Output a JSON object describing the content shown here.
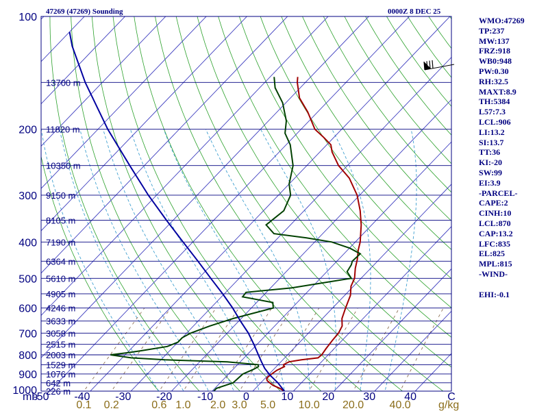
{
  "chart_data": {
    "type": "skew-t",
    "title": "47269 (47269) Sounding",
    "datetime": "0000Z  8 DEC 25",
    "pressure_axis": {
      "unit_label": "mb",
      "levels": [
        100,
        200,
        300,
        400,
        500,
        600,
        700,
        800,
        900,
        1000
      ],
      "ylim": [
        1000,
        100
      ]
    },
    "height_labels": [
      {
        "p": 150,
        "label": "13700 m"
      },
      {
        "p": 200,
        "label": "11820 m"
      },
      {
        "p": 250,
        "label": "10350 m"
      },
      {
        "p": 300,
        "label": "9150 m"
      },
      {
        "p": 350,
        "label": "8105 m"
      },
      {
        "p": 400,
        "label": "7190 m"
      },
      {
        "p": 450,
        "label": "6364 m"
      },
      {
        "p": 500,
        "label": "5610 m"
      },
      {
        "p": 550,
        "label": "4905 m"
      },
      {
        "p": 600,
        "label": "4246 m"
      },
      {
        "p": 650,
        "label": "3633 m"
      },
      {
        "p": 700,
        "label": "3058 m"
      },
      {
        "p": 750,
        "label": "2515 m"
      },
      {
        "p": 800,
        "label": "2003 m"
      },
      {
        "p": 850,
        "label": "1529 m"
      },
      {
        "p": 900,
        "label": "1076 m"
      },
      {
        "p": 950,
        "label": "642 m"
      },
      {
        "p": 1000,
        "label": "226 m"
      }
    ],
    "temperature_axis": {
      "ticks": [
        "-50",
        "-40",
        "-30",
        "-20",
        "-10",
        "0",
        "10",
        "20",
        "30",
        "40",
        "C"
      ],
      "xlim": [
        -50,
        50
      ]
    },
    "mixing_ratio_labels": {
      "unit_label": "g/kg",
      "values": [
        "0.1",
        "0.2",
        "0.6",
        "1.0",
        "2.0",
        "3.0",
        "5.0",
        "10.0",
        "20.0",
        "40.0"
      ]
    },
    "isobars": [
      100,
      150,
      200,
      250,
      300,
      350,
      400,
      450,
      500,
      550,
      600,
      650,
      700,
      750,
      800,
      850,
      900,
      950,
      1000
    ],
    "isotherms": [
      -150,
      -140,
      -130,
      -120,
      -110,
      -100,
      -90,
      -80,
      -70,
      -60,
      -50,
      -40,
      -30,
      -20,
      -10,
      0,
      10,
      20,
      30,
      40
    ],
    "dry_adiabats_theta": [
      250,
      260,
      270,
      280,
      290,
      300,
      310,
      320,
      330,
      340,
      350,
      360,
      370,
      380,
      390,
      400,
      410,
      420,
      430,
      440,
      450,
      460,
      470,
      480,
      490,
      500
    ],
    "moist_adiabats_c": [
      -20,
      -14,
      -8,
      -2,
      4,
      10,
      16,
      22,
      28,
      34
    ],
    "mixing_ratio_lines": [
      0.1,
      0.2,
      0.6,
      1,
      2,
      3,
      5,
      10,
      20,
      40
    ],
    "series": [
      {
        "name": "Temperature",
        "color": "#a00000",
        "points": [
          [
            1003,
            8
          ],
          [
            983,
            6
          ],
          [
            965,
            3.6
          ],
          [
            950,
            2.2
          ],
          [
            938,
            1.1
          ],
          [
            925,
            0.4
          ],
          [
            915,
            0.4
          ],
          [
            900,
            0.6
          ],
          [
            880,
            1
          ],
          [
            860,
            2
          ],
          [
            850,
            1.3
          ],
          [
            835,
            2
          ],
          [
            825,
            4.6
          ],
          [
            815,
            8.2
          ],
          [
            800,
            8.4
          ],
          [
            770,
            8
          ],
          [
            730,
            7.6
          ],
          [
            700,
            7.4
          ],
          [
            670,
            6.6
          ],
          [
            640,
            4.8
          ],
          [
            600,
            3.2
          ],
          [
            555,
            1.4
          ],
          [
            525,
            -0.6
          ],
          [
            500,
            -1.6
          ],
          [
            470,
            -3.8
          ],
          [
            445,
            -5.4
          ],
          [
            420,
            -7.4
          ],
          [
            400,
            -8.8
          ],
          [
            360,
            -12.6
          ],
          [
            330,
            -16.2
          ],
          [
            300,
            -20.6
          ],
          [
            270,
            -26.6
          ],
          [
            250,
            -32.2
          ],
          [
            230,
            -37
          ],
          [
            220,
            -39
          ],
          [
            210,
            -42.6
          ],
          [
            200,
            -46.6
          ],
          [
            180,
            -52.4
          ],
          [
            165,
            -57.8
          ],
          [
            150,
            -62
          ],
          [
            145,
            -63.2
          ]
        ]
      },
      {
        "name": "Dewpoint",
        "color": "#004000",
        "points": [
          [
            1003,
            -9.6
          ],
          [
            983,
            -9.6
          ],
          [
            950,
            -6.8
          ],
          [
            900,
            -6.5
          ],
          [
            875,
            -5
          ],
          [
            860,
            -4.4
          ],
          [
            850,
            -4.9
          ],
          [
            835,
            -13.2
          ],
          [
            825,
            -29
          ],
          [
            815,
            -37.8
          ],
          [
            800,
            -43.6
          ],
          [
            790,
            -40
          ],
          [
            780,
            -37
          ],
          [
            760,
            -31.6
          ],
          [
            740,
            -30
          ],
          [
            720,
            -30
          ],
          [
            700,
            -29
          ],
          [
            670,
            -26
          ],
          [
            640,
            -22
          ],
          [
            600,
            -14.6
          ],
          [
            580,
            -16
          ],
          [
            560,
            -24.8
          ],
          [
            545,
            -25
          ],
          [
            530,
            -14.8
          ],
          [
            500,
            -2.4
          ],
          [
            480,
            -5
          ],
          [
            460,
            -5.6
          ],
          [
            450,
            -6.2
          ],
          [
            430,
            -6
          ],
          [
            415,
            -10
          ],
          [
            400,
            -15.8
          ],
          [
            390,
            -23
          ],
          [
            380,
            -32
          ],
          [
            360,
            -36
          ],
          [
            330,
            -35
          ],
          [
            300,
            -37
          ],
          [
            280,
            -40
          ],
          [
            250,
            -43.4
          ],
          [
            220,
            -49
          ],
          [
            205,
            -53
          ],
          [
            190,
            -55.6
          ],
          [
            170,
            -60.8
          ],
          [
            155,
            -66.2
          ],
          [
            145,
            -69
          ]
        ]
      },
      {
        "name": "Parcel path",
        "color": "#0000a0",
        "points": [
          [
            1003,
            8
          ],
          [
            950,
            4.2
          ],
          [
            906,
            0.4
          ],
          [
            870,
            -2.4
          ],
          [
            835,
            -4.8
          ],
          [
            800,
            -7.2
          ],
          [
            750,
            -10.8
          ],
          [
            700,
            -14.8
          ],
          [
            650,
            -19.6
          ],
          [
            600,
            -24.6
          ],
          [
            550,
            -30.4
          ],
          [
            500,
            -37
          ],
          [
            450,
            -44.2
          ],
          [
            400,
            -52.4
          ],
          [
            350,
            -61.6
          ],
          [
            300,
            -72
          ],
          [
            250,
            -83.6
          ],
          [
            200,
            -97.6
          ],
          [
            150,
            -114.2
          ],
          [
            120,
            -126
          ],
          [
            110,
            -130
          ]
        ]
      }
    ],
    "wind_barb": {
      "label": "wind",
      "pressure": 150
    }
  },
  "indices": [
    "WMO:47269",
    "TP:237",
    "MW:137",
    "FRZ:918",
    "WB0:948",
    "PW:0.30",
    "RH:32.5",
    "MAXT:8.9",
    "TH:5384",
    "L57:7.3",
    "LCL:906",
    "LI:13.2",
    "SI:13.7",
    "TT:36",
    "KI:-20",
    "SW:99",
    "EI:3.9",
    "-PARCEL-",
    "CAPE:2",
    "CINH:10",
    "LCL:870",
    "CAP:13.2",
    "LFC:835",
    "EL:825",
    "MPL:815",
    "-WIND-",
    "",
    "EHI:-0.1"
  ],
  "colors": {
    "frame": "#000080",
    "isobar": "#000080",
    "isotherm": "#4040c0",
    "dry_adiabat": "#2aa02a",
    "moist_adiabat": "#40a0d0",
    "mixing_ratio": "#806040",
    "mix_label": "#8b6d1a"
  }
}
